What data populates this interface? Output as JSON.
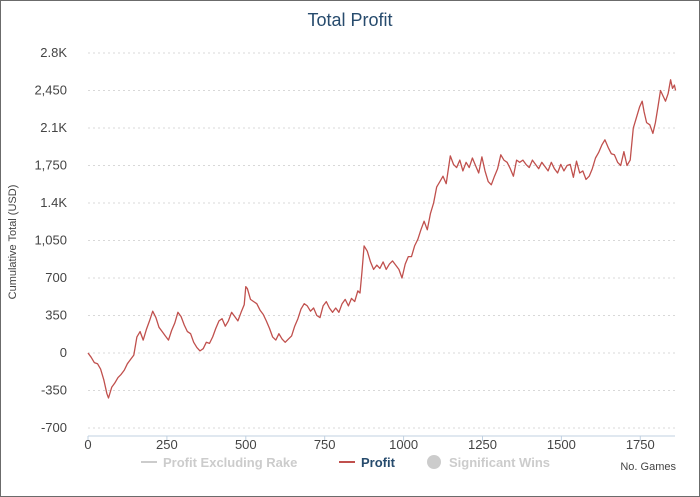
{
  "chart_data": {
    "type": "line",
    "title": "Total Profit",
    "xlabel": "No. Games",
    "ylabel": "Cumulative Total (USD)",
    "xlim": [
      0,
      1860
    ],
    "ylim": [
      -700,
      2800
    ],
    "x_ticks": [
      0,
      250,
      500,
      750,
      1000,
      1250,
      1500,
      1750
    ],
    "x_tick_labels": [
      "0",
      "250",
      "500",
      "750",
      "1000",
      "1250",
      "1500",
      "1750"
    ],
    "y_ticks": [
      -700,
      -350,
      0,
      350,
      700,
      1050,
      1400,
      1750,
      2100,
      2450,
      2800
    ],
    "y_tick_labels": [
      "-700",
      "-350",
      "0",
      "350",
      "700",
      "1,050",
      "1.4K",
      "1,750",
      "2.1K",
      "2,450",
      "2.8K"
    ],
    "grid": true,
    "legend_position": "bottom",
    "legend": [
      {
        "label": "Profit Excluding Rake",
        "visible": false,
        "color": "#cccccc",
        "symbol": "line"
      },
      {
        "label": "Profit",
        "visible": true,
        "color": "#c0504d",
        "symbol": "line"
      },
      {
        "label": "Significant Wins",
        "visible": false,
        "color": "#cccccc",
        "symbol": "circle"
      }
    ],
    "series": [
      {
        "name": "Profit",
        "color": "#c0504d",
        "points": [
          [
            0,
            0
          ],
          [
            10,
            -40
          ],
          [
            20,
            -90
          ],
          [
            30,
            -100
          ],
          [
            40,
            -150
          ],
          [
            50,
            -250
          ],
          [
            60,
            -380
          ],
          [
            65,
            -420
          ],
          [
            75,
            -320
          ],
          [
            85,
            -280
          ],
          [
            95,
            -230
          ],
          [
            105,
            -200
          ],
          [
            115,
            -160
          ],
          [
            125,
            -100
          ],
          [
            135,
            -60
          ],
          [
            145,
            -20
          ],
          [
            155,
            150
          ],
          [
            165,
            200
          ],
          [
            175,
            120
          ],
          [
            185,
            220
          ],
          [
            195,
            300
          ],
          [
            205,
            390
          ],
          [
            215,
            330
          ],
          [
            225,
            240
          ],
          [
            235,
            200
          ],
          [
            245,
            160
          ],
          [
            255,
            120
          ],
          [
            265,
            210
          ],
          [
            275,
            280
          ],
          [
            285,
            380
          ],
          [
            295,
            340
          ],
          [
            305,
            260
          ],
          [
            315,
            200
          ],
          [
            325,
            180
          ],
          [
            335,
            100
          ],
          [
            345,
            50
          ],
          [
            355,
            20
          ],
          [
            365,
            40
          ],
          [
            375,
            100
          ],
          [
            385,
            90
          ],
          [
            395,
            150
          ],
          [
            405,
            230
          ],
          [
            415,
            300
          ],
          [
            425,
            320
          ],
          [
            435,
            250
          ],
          [
            445,
            300
          ],
          [
            455,
            380
          ],
          [
            465,
            340
          ],
          [
            475,
            300
          ],
          [
            485,
            380
          ],
          [
            495,
            450
          ],
          [
            500,
            620
          ],
          [
            505,
            600
          ],
          [
            515,
            500
          ],
          [
            525,
            480
          ],
          [
            535,
            460
          ],
          [
            545,
            400
          ],
          [
            555,
            360
          ],
          [
            565,
            300
          ],
          [
            575,
            230
          ],
          [
            585,
            150
          ],
          [
            595,
            120
          ],
          [
            605,
            180
          ],
          [
            615,
            130
          ],
          [
            625,
            100
          ],
          [
            635,
            130
          ],
          [
            645,
            160
          ],
          [
            655,
            250
          ],
          [
            665,
            320
          ],
          [
            675,
            410
          ],
          [
            685,
            460
          ],
          [
            695,
            440
          ],
          [
            705,
            390
          ],
          [
            715,
            420
          ],
          [
            725,
            350
          ],
          [
            735,
            330
          ],
          [
            745,
            440
          ],
          [
            755,
            480
          ],
          [
            765,
            420
          ],
          [
            775,
            380
          ],
          [
            785,
            420
          ],
          [
            795,
            380
          ],
          [
            805,
            460
          ],
          [
            815,
            500
          ],
          [
            825,
            440
          ],
          [
            835,
            510
          ],
          [
            845,
            480
          ],
          [
            855,
            580
          ],
          [
            862,
            560
          ],
          [
            868,
            750
          ],
          [
            875,
            1000
          ],
          [
            885,
            950
          ],
          [
            895,
            850
          ],
          [
            905,
            780
          ],
          [
            915,
            820
          ],
          [
            925,
            790
          ],
          [
            935,
            850
          ],
          [
            945,
            780
          ],
          [
            955,
            830
          ],
          [
            965,
            860
          ],
          [
            975,
            820
          ],
          [
            985,
            780
          ],
          [
            995,
            700
          ],
          [
            1005,
            830
          ],
          [
            1015,
            900
          ],
          [
            1025,
            900
          ],
          [
            1035,
            1000
          ],
          [
            1045,
            1060
          ],
          [
            1055,
            1150
          ],
          [
            1065,
            1230
          ],
          [
            1075,
            1150
          ],
          [
            1085,
            1300
          ],
          [
            1095,
            1400
          ],
          [
            1105,
            1550
          ],
          [
            1115,
            1600
          ],
          [
            1125,
            1650
          ],
          [
            1135,
            1580
          ],
          [
            1142,
            1720
          ],
          [
            1148,
            1840
          ],
          [
            1158,
            1760
          ],
          [
            1168,
            1730
          ],
          [
            1178,
            1800
          ],
          [
            1188,
            1700
          ],
          [
            1198,
            1780
          ],
          [
            1208,
            1730
          ],
          [
            1218,
            1820
          ],
          [
            1228,
            1750
          ],
          [
            1238,
            1680
          ],
          [
            1248,
            1830
          ],
          [
            1258,
            1700
          ],
          [
            1268,
            1600
          ],
          [
            1278,
            1570
          ],
          [
            1288,
            1650
          ],
          [
            1298,
            1720
          ],
          [
            1308,
            1850
          ],
          [
            1318,
            1800
          ],
          [
            1328,
            1780
          ],
          [
            1338,
            1720
          ],
          [
            1348,
            1650
          ],
          [
            1358,
            1800
          ],
          [
            1368,
            1780
          ],
          [
            1378,
            1800
          ],
          [
            1388,
            1760
          ],
          [
            1398,
            1730
          ],
          [
            1408,
            1800
          ],
          [
            1418,
            1760
          ],
          [
            1428,
            1720
          ],
          [
            1438,
            1780
          ],
          [
            1448,
            1740
          ],
          [
            1458,
            1700
          ],
          [
            1468,
            1780
          ],
          [
            1478,
            1720
          ],
          [
            1488,
            1680
          ],
          [
            1498,
            1760
          ],
          [
            1508,
            1700
          ],
          [
            1518,
            1750
          ],
          [
            1528,
            1760
          ],
          [
            1538,
            1640
          ],
          [
            1548,
            1790
          ],
          [
            1558,
            1680
          ],
          [
            1568,
            1700
          ],
          [
            1578,
            1620
          ],
          [
            1588,
            1650
          ],
          [
            1598,
            1720
          ],
          [
            1608,
            1820
          ],
          [
            1618,
            1870
          ],
          [
            1628,
            1940
          ],
          [
            1638,
            1990
          ],
          [
            1648,
            1920
          ],
          [
            1658,
            1860
          ],
          [
            1668,
            1850
          ],
          [
            1678,
            1780
          ],
          [
            1688,
            1750
          ],
          [
            1698,
            1880
          ],
          [
            1708,
            1750
          ],
          [
            1718,
            1800
          ],
          [
            1728,
            2100
          ],
          [
            1738,
            2200
          ],
          [
            1748,
            2300
          ],
          [
            1756,
            2350
          ],
          [
            1762,
            2250
          ],
          [
            1770,
            2150
          ],
          [
            1780,
            2130
          ],
          [
            1790,
            2050
          ],
          [
            1798,
            2150
          ],
          [
            1806,
            2300
          ],
          [
            1814,
            2450
          ],
          [
            1822,
            2400
          ],
          [
            1830,
            2350
          ],
          [
            1838,
            2420
          ],
          [
            1846,
            2550
          ],
          [
            1852,
            2470
          ],
          [
            1858,
            2500
          ],
          [
            1862,
            2450
          ]
        ]
      }
    ]
  }
}
